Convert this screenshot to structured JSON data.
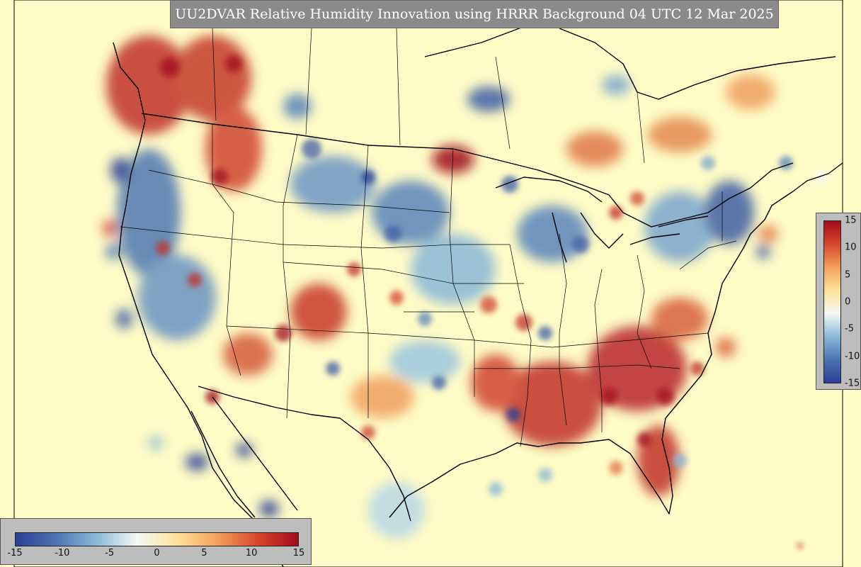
{
  "title": "UU2DVAR Relative Humidity Innovation using HRRR Background 04 UTC 12 Mar 2025",
  "colorbar": {
    "min": -15,
    "max": 15,
    "horizontal_ticks": [
      "-15",
      "-10",
      "-5",
      "0",
      "5",
      "10",
      "15"
    ],
    "vertical_ticks": [
      "15",
      "10",
      "5",
      "0",
      "-5",
      "-10",
      "-15"
    ],
    "colors": [
      "#2c3f95",
      "#4c74b3",
      "#8ab8d8",
      "#f4f9f4",
      "#fee29a",
      "#f4a05c",
      "#d6472c",
      "#a20b1e"
    ]
  },
  "map": {
    "background": "#fefbc6",
    "region": "Continental United States",
    "field": "relative humidity innovation"
  }
}
